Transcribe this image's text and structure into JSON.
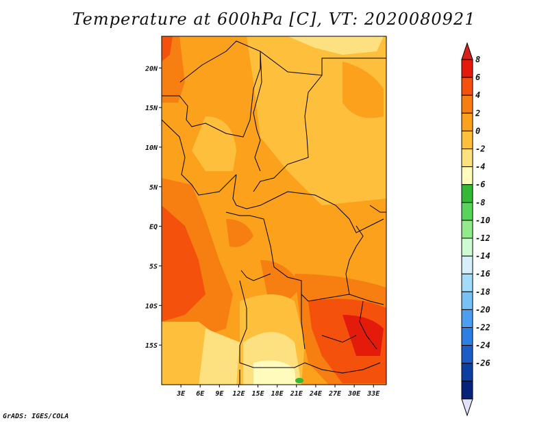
{
  "title": "Temperature at 600hPa [C], VT: 2020080921",
  "credit": "GrADS: IGES/COLA",
  "map": {
    "lon_range": [
      0,
      35
    ],
    "lat_range": [
      -20,
      24
    ],
    "x_ticks": [
      "3E",
      "6E",
      "9E",
      "12E",
      "15E",
      "18E",
      "21E",
      "24E",
      "27E",
      "30E",
      "33E"
    ],
    "y_ticks": [
      "20N",
      "15N",
      "10N",
      "5N",
      "EQ",
      "5S",
      "10S",
      "15S"
    ]
  },
  "colorbar": {
    "labels": [
      "8",
      "6",
      "4",
      "2",
      "0",
      "-2",
      "-4",
      "-6",
      "-8",
      "-10",
      "-12",
      "-14",
      "-16",
      "-18",
      "-20",
      "-22",
      "-24",
      "-26"
    ],
    "colors": [
      "#e41a0b",
      "#f4520c",
      "#f77f12",
      "#fba11c",
      "#fdbf3c",
      "#fde07f",
      "#fffbbd",
      "#33b935",
      "#59d35b",
      "#93ea8d",
      "#cefbd0",
      "#d5f0fb",
      "#a3dcfa",
      "#77c1f5",
      "#4c9ef0",
      "#2e7fe3",
      "#1c5cc6",
      "#0b3fa0",
      "#06237a"
    ],
    "top_arrow_color": "#d8201d",
    "bottom_arrow_color": "#e2e2fb"
  }
}
